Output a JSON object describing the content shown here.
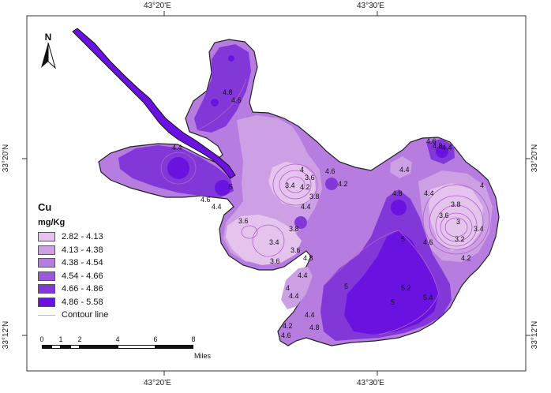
{
  "coordinates": {
    "top": [
      "43°20'E",
      "43°30'E"
    ],
    "bottom": [
      "43°20'E",
      "43°30'E"
    ],
    "left": [
      "33°20'N",
      "33°12'N"
    ],
    "right": [
      "33°20'N",
      "33°12'N"
    ]
  },
  "north_arrow": {
    "label": "N"
  },
  "legend": {
    "title": "Cu",
    "unit": "mg/Kg",
    "classes": [
      {
        "label": "2.82 - 4.13",
        "color": "#e4c3ed"
      },
      {
        "label": "4.13 - 4.38",
        "color": "#cda0e6"
      },
      {
        "label": "4.38 - 4.54",
        "color": "#b67ce0"
      },
      {
        "label": "4.54 - 4.66",
        "color": "#9d57da"
      },
      {
        "label": "4.66 - 4.86",
        "color": "#8238d9"
      },
      {
        "label": "4.86 - 5.58",
        "color": "#6a12e0"
      }
    ],
    "contour_label": "Contour line"
  },
  "scale_bar": {
    "ticks": [
      "0",
      "1",
      "2",
      "4",
      "6",
      "8"
    ],
    "unit": "Miles"
  },
  "contour_labels": [
    "4.8",
    "4.6",
    "4.4",
    "5",
    "4.6",
    "4.4",
    "3.6",
    "3.4",
    "3.6",
    "4",
    "3.8",
    "3.6",
    "3.4",
    "4.2",
    "4.4",
    "4.6",
    "4.2",
    "4.4",
    "4.8",
    "5",
    "5",
    "5.2",
    "5.4",
    "5",
    "4.8",
    "4.6",
    "4.4",
    "3.8",
    "3.6",
    "3.4",
    "3.2",
    "3",
    "4",
    "4.2",
    "4.4",
    "4.6",
    "4.8",
    "4.4",
    "4",
    "4.4",
    "4.2",
    "4.4",
    "4.6",
    "4.8",
    "3.6",
    "3.8"
  ]
}
